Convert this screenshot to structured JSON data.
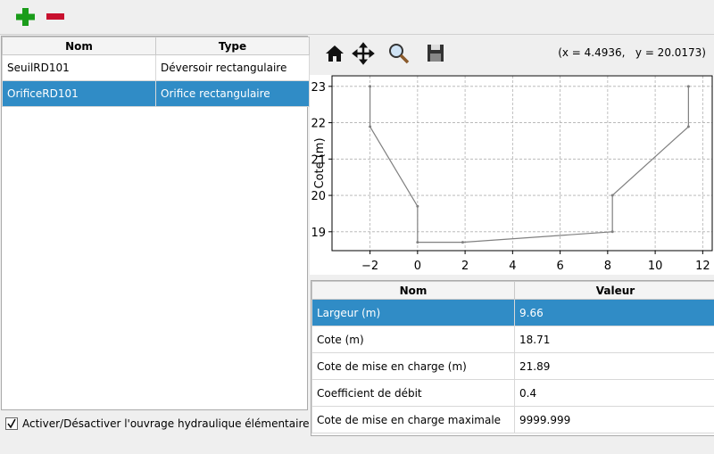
{
  "left_table": {
    "columns": [
      "Nom",
      "Type"
    ],
    "rows": [
      [
        "SeuilRD101",
        "Déversoir rectangulaire"
      ],
      [
        "OrificeRD101",
        "Orifice rectangulaire"
      ]
    ],
    "selected_row": 1
  },
  "checkbox": {
    "label": "Activer/Désactiver l'ouvrage hydraulique élémentaire",
    "checked": true
  },
  "plot_toolbar": {
    "coordinates": "(x = 4.4936,   y = 20.0173)"
  },
  "chart_data": {
    "type": "line",
    "ylabel": "Cote (m)",
    "x": [
      -2,
      -2,
      0,
      0,
      1.9,
      8.2,
      8.2,
      11.4,
      11.4
    ],
    "values": [
      23,
      21.89,
      19.7,
      18.71,
      18.71,
      19.0,
      20.0,
      21.89,
      23
    ],
    "color": "#808080",
    "xlim": [
      -3.6,
      12.4
    ],
    "ylim": [
      18.48,
      23.29
    ],
    "xticks": [
      {
        "value": -2,
        "label": "−2"
      },
      0,
      2,
      4,
      6,
      8,
      10,
      12
    ],
    "yticks": [
      19,
      20,
      21,
      22,
      23
    ],
    "grid": true
  },
  "properties_table": {
    "columns": [
      "Nom",
      "Valeur"
    ],
    "rows": [
      [
        "Largeur (m)",
        "9.66"
      ],
      [
        "Cote (m)",
        "18.71"
      ],
      [
        "Cote de mise en charge (m)",
        "21.89"
      ],
      [
        "Coefficient de débit",
        "0.4"
      ],
      [
        "Cote de mise en charge maximale",
        "9999.999"
      ]
    ],
    "selected_row": 0
  }
}
